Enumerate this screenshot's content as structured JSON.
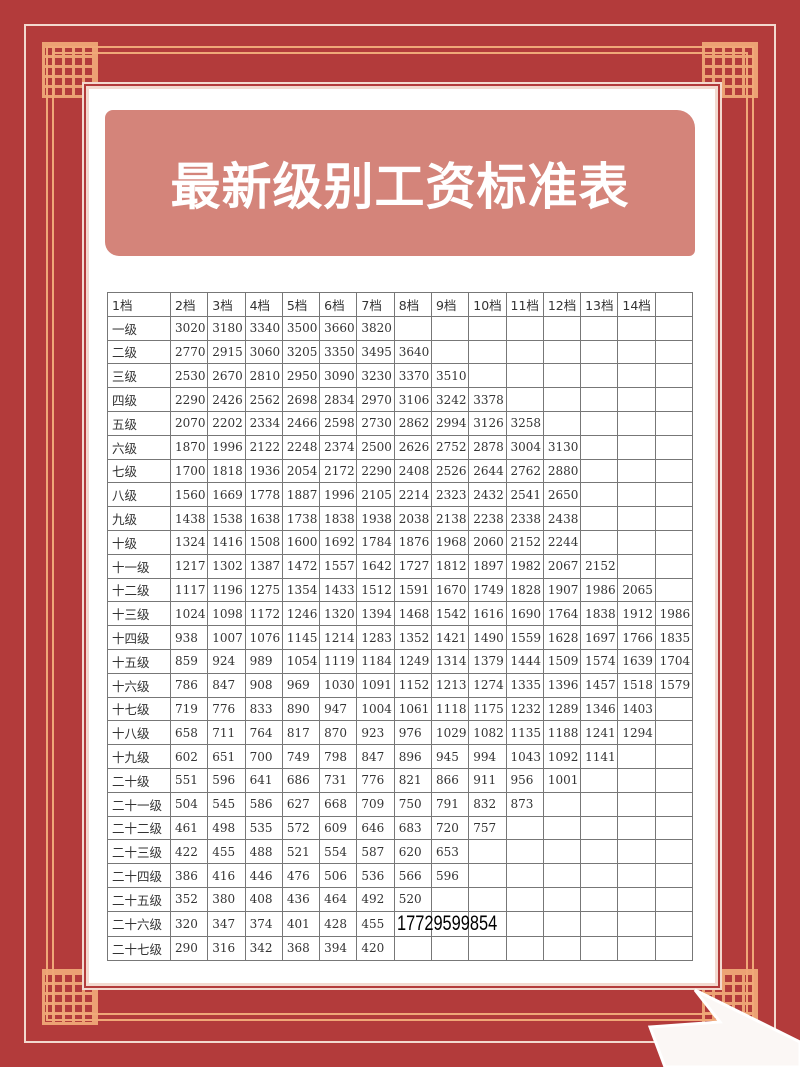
{
  "title": "最新级别工资标准表",
  "table": {
    "headers": [
      "1档",
      "2档",
      "3档",
      "4档",
      "5档",
      "6档",
      "7档",
      "8档",
      "9档",
      "10档",
      "11档",
      "12档",
      "13档",
      "14档",
      ""
    ],
    "rows": [
      {
        "label": "一级",
        "values": [
          "3020",
          "3180",
          "3340",
          "3500",
          "3660",
          "3820"
        ]
      },
      {
        "label": "二级",
        "values": [
          "2770",
          "2915",
          "3060",
          "3205",
          "3350",
          "3495",
          "3640"
        ]
      },
      {
        "label": "三级",
        "values": [
          "2530",
          "2670",
          "2810",
          "2950",
          "3090",
          "3230",
          "3370",
          "3510"
        ]
      },
      {
        "label": "四级",
        "values": [
          "2290",
          "2426",
          "2562",
          "2698",
          "2834",
          "2970",
          "3106",
          "3242",
          "3378"
        ]
      },
      {
        "label": "五级",
        "values": [
          "2070",
          "2202",
          "2334",
          "2466",
          "2598",
          "2730",
          "2862",
          "2994",
          "3126",
          "3258"
        ]
      },
      {
        "label": "六级",
        "values": [
          "1870",
          "1996",
          "2122",
          "2248",
          "2374",
          "2500",
          "2626",
          "2752",
          "2878",
          "3004",
          "3130"
        ]
      },
      {
        "label": "七级",
        "values": [
          "1700",
          "1818",
          "1936",
          "2054",
          "2172",
          "2290",
          "2408",
          "2526",
          "2644",
          "2762",
          "2880"
        ]
      },
      {
        "label": "八级",
        "values": [
          "1560",
          "1669",
          "1778",
          "1887",
          "1996",
          "2105",
          "2214",
          "2323",
          "2432",
          "2541",
          "2650"
        ]
      },
      {
        "label": "九级",
        "values": [
          "1438",
          "1538",
          "1638",
          "1738",
          "1838",
          "1938",
          "2038",
          "2138",
          "2238",
          "2338",
          "2438"
        ]
      },
      {
        "label": "十级",
        "values": [
          "1324",
          "1416",
          "1508",
          "1600",
          "1692",
          "1784",
          "1876",
          "1968",
          "2060",
          "2152",
          "2244"
        ]
      },
      {
        "label": "十一级",
        "values": [
          "1217",
          "1302",
          "1387",
          "1472",
          "1557",
          "1642",
          "1727",
          "1812",
          "1897",
          "1982",
          "2067",
          "2152"
        ]
      },
      {
        "label": "十二级",
        "values": [
          "1117",
          "1196",
          "1275",
          "1354",
          "1433",
          "1512",
          "1591",
          "1670",
          "1749",
          "1828",
          "1907",
          "1986",
          "2065"
        ]
      },
      {
        "label": "十三级",
        "values": [
          "1024",
          "1098",
          "1172",
          "1246",
          "1320",
          "1394",
          "1468",
          "1542",
          "1616",
          "1690",
          "1764",
          "1838",
          "1912",
          "1986"
        ]
      },
      {
        "label": "十四级",
        "values": [
          "938",
          "1007",
          "1076",
          "1145",
          "1214",
          "1283",
          "1352",
          "1421",
          "1490",
          "1559",
          "1628",
          "1697",
          "1766",
          "1835"
        ]
      },
      {
        "label": "十五级",
        "values": [
          "859",
          "924",
          "989",
          "1054",
          "1119",
          "1184",
          "1249",
          "1314",
          "1379",
          "1444",
          "1509",
          "1574",
          "1639",
          "1704"
        ]
      },
      {
        "label": "十六级",
        "values": [
          "786",
          "847",
          "908",
          "969",
          "1030",
          "1091",
          "1152",
          "1213",
          "1274",
          "1335",
          "1396",
          "1457",
          "1518",
          "1579"
        ]
      },
      {
        "label": "十七级",
        "values": [
          "719",
          "776",
          "833",
          "890",
          "947",
          "1004",
          "1061",
          "1118",
          "1175",
          "1232",
          "1289",
          "1346",
          "1403"
        ]
      },
      {
        "label": "十八级",
        "values": [
          "658",
          "711",
          "764",
          "817",
          "870",
          "923",
          "976",
          "1029",
          "1082",
          "1135",
          "1188",
          "1241",
          "1294"
        ]
      },
      {
        "label": "十九级",
        "values": [
          "602",
          "651",
          "700",
          "749",
          "798",
          "847",
          "896",
          "945",
          "994",
          "1043",
          "1092",
          "1141"
        ]
      },
      {
        "label": "二十级",
        "values": [
          "551",
          "596",
          "641",
          "686",
          "731",
          "776",
          "821",
          "866",
          "911",
          "956",
          "1001"
        ]
      },
      {
        "label": "二十一级",
        "values": [
          "504",
          "545",
          "586",
          "627",
          "668",
          "709",
          "750",
          "791",
          "832",
          "873"
        ]
      },
      {
        "label": "二十二级",
        "values": [
          "461",
          "498",
          "535",
          "572",
          "609",
          "646",
          "683",
          "720",
          "757"
        ]
      },
      {
        "label": "二十三级",
        "values": [
          "422",
          "455",
          "488",
          "521",
          "554",
          "587",
          "620",
          "653"
        ]
      },
      {
        "label": "二十四级",
        "values": [
          "386",
          "416",
          "446",
          "476",
          "506",
          "536",
          "566",
          "596"
        ]
      },
      {
        "label": "二十五级",
        "values": [
          "352",
          "380",
          "408",
          "436",
          "464",
          "492",
          "520"
        ]
      },
      {
        "label": "二十六级",
        "values": [
          "320",
          "347",
          "374",
          "401",
          "428",
          "455"
        ]
      },
      {
        "label": "二十七级",
        "values": [
          "290",
          "316",
          "342",
          "368",
          "394",
          "420"
        ]
      }
    ]
  },
  "phone_overlay": "17729599854",
  "colors": {
    "background": "#b33b3b",
    "banner": "#d4847a",
    "frame_accent": "#f0a878"
  }
}
